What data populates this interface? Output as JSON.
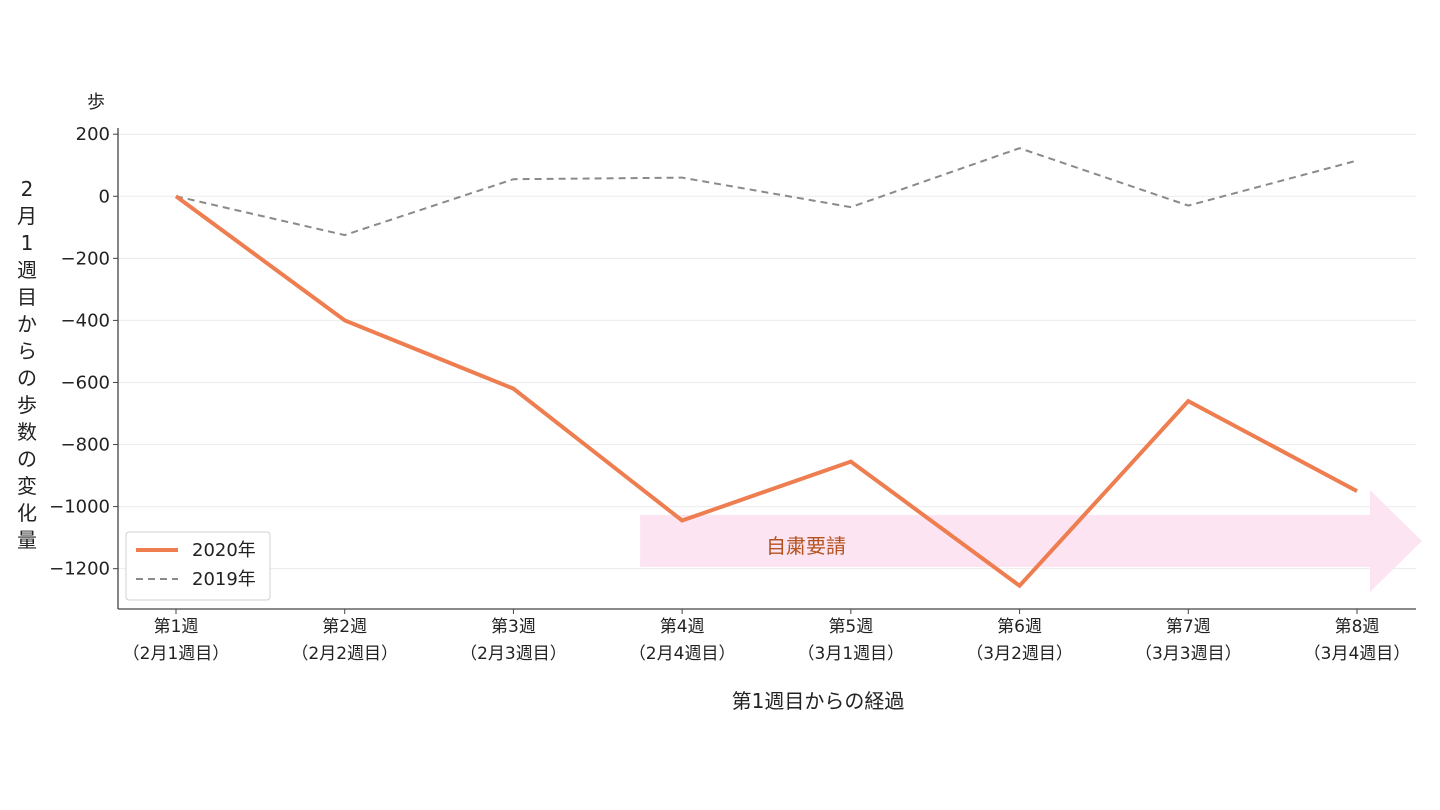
{
  "chart_data": {
    "type": "line",
    "ylabel_unit": "歩",
    "ylabel": "2月1週目からの歩数の変化量",
    "xlabel": "第1週目からの経過",
    "categories": [
      [
        "第1週",
        "（2月1週目）"
      ],
      [
        "第2週",
        "（2月2週目）"
      ],
      [
        "第3週",
        "（2月3週目）"
      ],
      [
        "第4週",
        "（2月4週目）"
      ],
      [
        "第5週",
        "（3月1週目）"
      ],
      [
        "第6週",
        "（3月2週目）"
      ],
      [
        "第7週",
        "（3月3週目）"
      ],
      [
        "第8週",
        "（3月4週目）"
      ]
    ],
    "ylim": [
      -1330,
      220
    ],
    "yticks": [
      200,
      0,
      -200,
      -400,
      -600,
      -800,
      -1000,
      -1200
    ],
    "grid": true,
    "legend_position": "lower-left",
    "series": [
      {
        "name": "2020年",
        "color": "#ee7d50",
        "style": "solid",
        "values": [
          0,
          -400,
          -620,
          -1045,
          -855,
          -1255,
          -660,
          -950
        ]
      },
      {
        "name": "2019年",
        "color": "#8a8a8a",
        "style": "dashed",
        "values": [
          0,
          -125,
          55,
          60,
          -35,
          155,
          -30,
          115
        ]
      }
    ],
    "annotation": {
      "label": "自粛要請",
      "start_category_index": 3,
      "color": "#fce4f2",
      "text_color": "#b5521f"
    }
  }
}
